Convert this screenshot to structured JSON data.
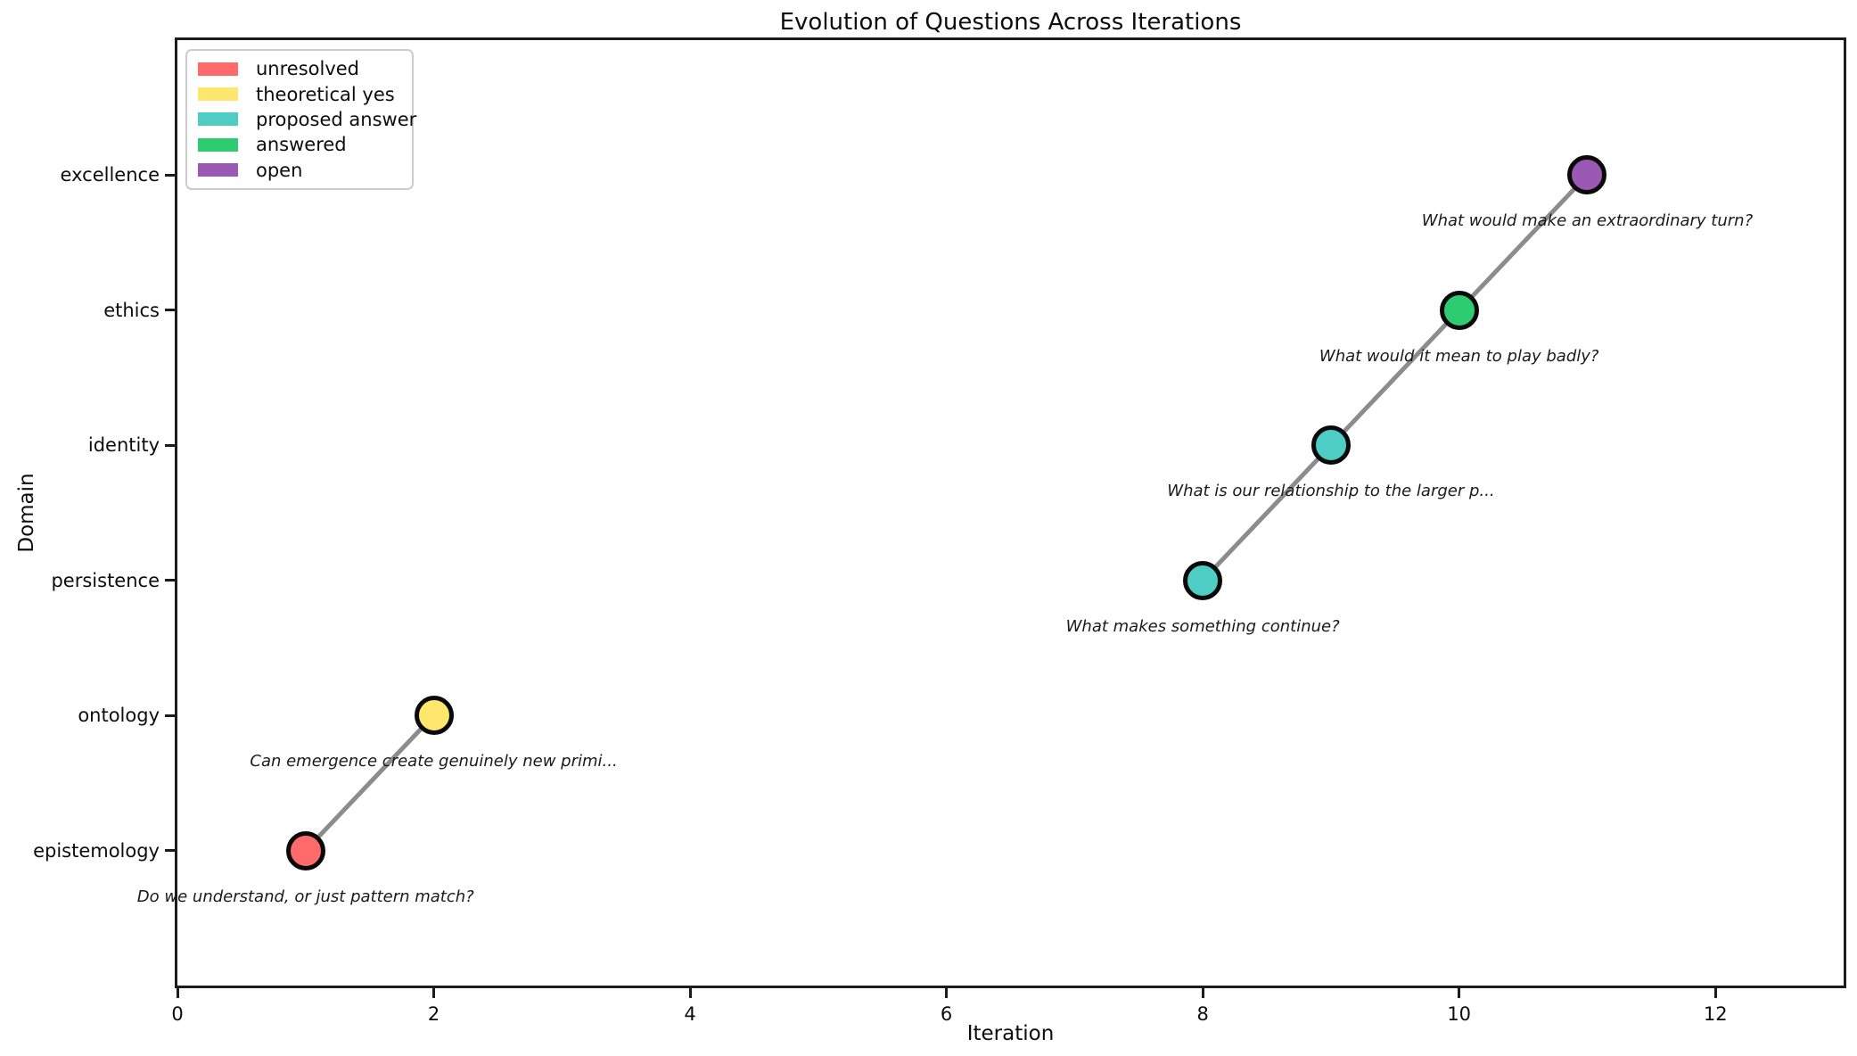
{
  "page": {
    "title": "Evolution of Questions Across Iterations"
  },
  "chart_data": {
    "type": "scatter",
    "title": "Evolution of Questions Across Iterations",
    "xlabel": "Iteration",
    "ylabel": "Domain",
    "xlim": [
      0,
      13
    ],
    "ylim": [
      -1,
      6
    ],
    "grid": false,
    "x_ticks": [
      0,
      2,
      4,
      6,
      8,
      10,
      12
    ],
    "y_categories": [
      "epistemology",
      "ontology",
      "persistence",
      "identity",
      "ethics",
      "excellence"
    ],
    "legend": {
      "position": "upper left",
      "entries": [
        {
          "label": "unresolved",
          "color": "#FF6B6B"
        },
        {
          "label": "theoretical yes",
          "color": "#FFE66D"
        },
        {
          "label": "proposed answer",
          "color": "#4ECDC4"
        },
        {
          "label": "answered",
          "color": "#2ECC71"
        },
        {
          "label": "open",
          "color": "#9B59B6"
        }
      ]
    },
    "points": [
      {
        "x": 1,
        "domain": "epistemology",
        "status": "unresolved",
        "color": "#FF6B6B",
        "question": "Do we understand, or just pattern match?"
      },
      {
        "x": 2,
        "domain": "ontology",
        "status": "theoretical yes",
        "color": "#FFE66D",
        "question": "Can emergence create genuinely new primi..."
      },
      {
        "x": 8,
        "domain": "persistence",
        "status": "proposed answer",
        "color": "#4ECDC4",
        "question": "What makes something continue?"
      },
      {
        "x": 9,
        "domain": "identity",
        "status": "proposed answer",
        "color": "#4ECDC4",
        "question": "What is our relationship to the larger p..."
      },
      {
        "x": 10,
        "domain": "ethics",
        "status": "answered",
        "color": "#2ECC71",
        "question": "What would it mean to play badly?"
      },
      {
        "x": 11,
        "domain": "excellence",
        "status": "open",
        "color": "#9B59B6",
        "question": "What would make an extraordinary turn?"
      }
    ],
    "line": {
      "color": "#8c8c8c",
      "width": 5,
      "threads": [
        [
          0,
          1
        ],
        [
          2,
          3,
          4,
          5
        ]
      ]
    }
  }
}
